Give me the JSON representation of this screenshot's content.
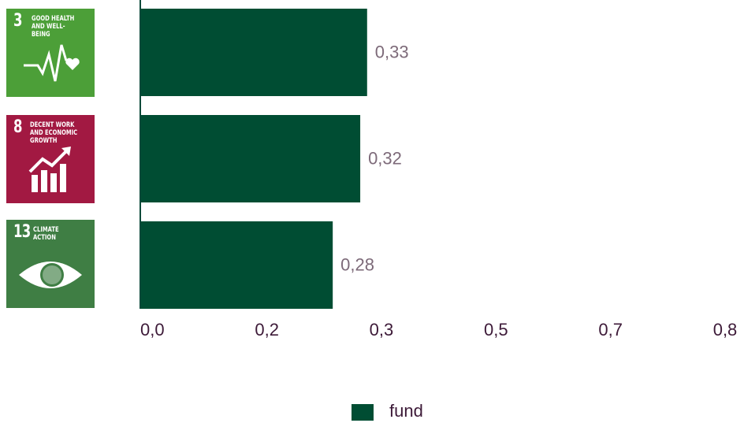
{
  "chart_data": {
    "type": "bar",
    "orientation": "horizontal",
    "categories": [
      "GOOD HEALTH AND WELL-BEING",
      "DECENT WORK AND ECONOMIC GROWTH",
      "CLIMATE ACTION"
    ],
    "category_numbers": [
      3,
      8,
      13
    ],
    "category_colors": [
      "#4c9f38",
      "#a21942",
      "#3f7e44"
    ],
    "series": [
      {
        "name": "fund",
        "color": "#004d33",
        "values": [
          0.33,
          0.32,
          0.28
        ],
        "value_labels": [
          "0,33",
          "0,32",
          "0,28"
        ]
      }
    ],
    "xlim": [
      0,
      0.86
    ],
    "xticks": [
      {
        "value": 0,
        "label": "0,0"
      },
      {
        "value": 0.1667,
        "label": "0,2"
      },
      {
        "value": 0.3333,
        "label": "0,3"
      },
      {
        "value": 0.5,
        "label": "0,5"
      },
      {
        "value": 0.6667,
        "label": "0,7"
      },
      {
        "value": 0.8333,
        "label": "0,8"
      }
    ],
    "legend": "bottom"
  }
}
